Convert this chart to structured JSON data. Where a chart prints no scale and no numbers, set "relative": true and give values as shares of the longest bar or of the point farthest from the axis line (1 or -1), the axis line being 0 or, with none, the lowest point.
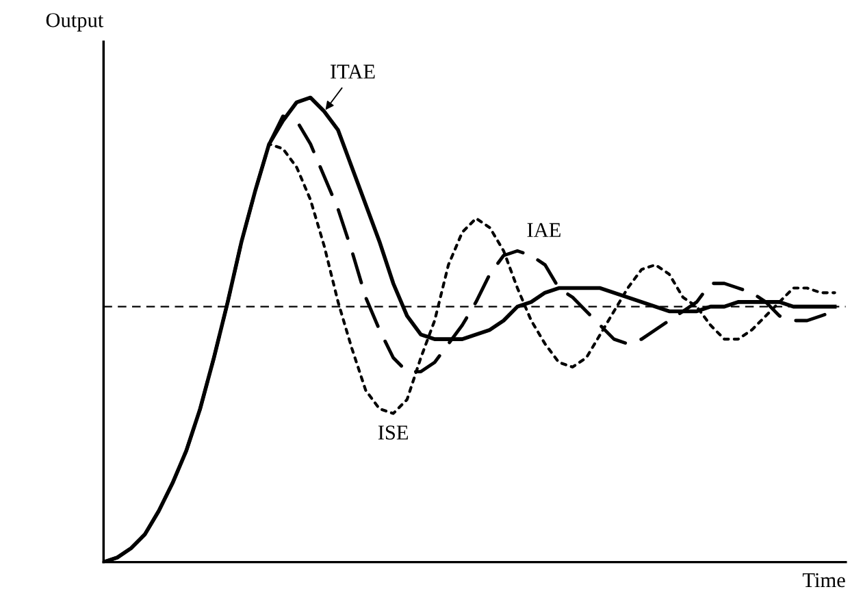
{
  "chart_data": {
    "type": "line",
    "relative": true,
    "xlabel": "Time",
    "ylabel": "Output",
    "categories": [
      null,
      null,
      null,
      null,
      null,
      null,
      null,
      null,
      null,
      null,
      null,
      null,
      null,
      null,
      null,
      null,
      null,
      null,
      null,
      null,
      null,
      null,
      null,
      null,
      null,
      null,
      null,
      null,
      null,
      null,
      null,
      null,
      null,
      null,
      null,
      null,
      null,
      null,
      null,
      null,
      null,
      null,
      null,
      null,
      null,
      null,
      null,
      null,
      null,
      null,
      null,
      null,
      null,
      null
    ],
    "series": [
      {
        "name": "ITAE",
        "color": "#000000",
        "line_style": "solid",
        "values": [
          0,
          0.01,
          0.03,
          0.06,
          0.11,
          0.17,
          0.24,
          0.33,
          0.44,
          0.56,
          0.69,
          0.8,
          0.9,
          0.95,
          0.99,
          1.0,
          0.97,
          0.93,
          0.85,
          0.77,
          0.69,
          0.6,
          0.53,
          0.49,
          0.48,
          0.48,
          0.48,
          0.49,
          0.5,
          0.52,
          0.55,
          0.56,
          0.58,
          0.59,
          0.59,
          0.59,
          0.59,
          0.58,
          0.57,
          0.56,
          0.55,
          0.54,
          0.54,
          0.54,
          0.55,
          0.55,
          0.56,
          0.56,
          0.56,
          0.56,
          0.55,
          0.55,
          0.55,
          0.55
        ]
      },
      {
        "name": "IAE",
        "color": "#000000",
        "line_style": "dashed",
        "values": [
          0,
          0.01,
          0.03,
          0.06,
          0.11,
          0.17,
          0.24,
          0.33,
          0.44,
          0.56,
          0.69,
          0.8,
          0.9,
          0.96,
          0.95,
          0.9,
          0.83,
          0.76,
          0.67,
          0.57,
          0.5,
          0.44,
          0.41,
          0.41,
          0.43,
          0.47,
          0.51,
          0.56,
          0.62,
          0.66,
          0.67,
          0.66,
          0.64,
          0.59,
          0.57,
          0.54,
          0.51,
          0.48,
          0.47,
          0.48,
          0.5,
          0.52,
          0.54,
          0.56,
          0.6,
          0.6,
          0.59,
          0.58,
          0.56,
          0.53,
          0.52,
          0.52,
          0.53,
          0.54
        ]
      },
      {
        "name": "ISE",
        "color": "#000000",
        "line_style": "dotted",
        "values": [
          0,
          0.01,
          0.03,
          0.06,
          0.11,
          0.17,
          0.24,
          0.33,
          0.44,
          0.56,
          0.69,
          0.8,
          0.9,
          0.89,
          0.85,
          0.78,
          0.68,
          0.56,
          0.46,
          0.37,
          0.33,
          0.32,
          0.35,
          0.44,
          0.52,
          0.64,
          0.71,
          0.74,
          0.72,
          0.67,
          0.59,
          0.52,
          0.47,
          0.43,
          0.42,
          0.44,
          0.49,
          0.54,
          0.59,
          0.63,
          0.64,
          0.62,
          0.57,
          0.55,
          0.51,
          0.48,
          0.48,
          0.5,
          0.53,
          0.56,
          0.59,
          0.59,
          0.58,
          0.58
        ]
      }
    ],
    "ref_lines": [
      {
        "axis": "y",
        "value": 0.55,
        "label": null,
        "line_style": "dashed",
        "color": "#000000"
      }
    ]
  }
}
